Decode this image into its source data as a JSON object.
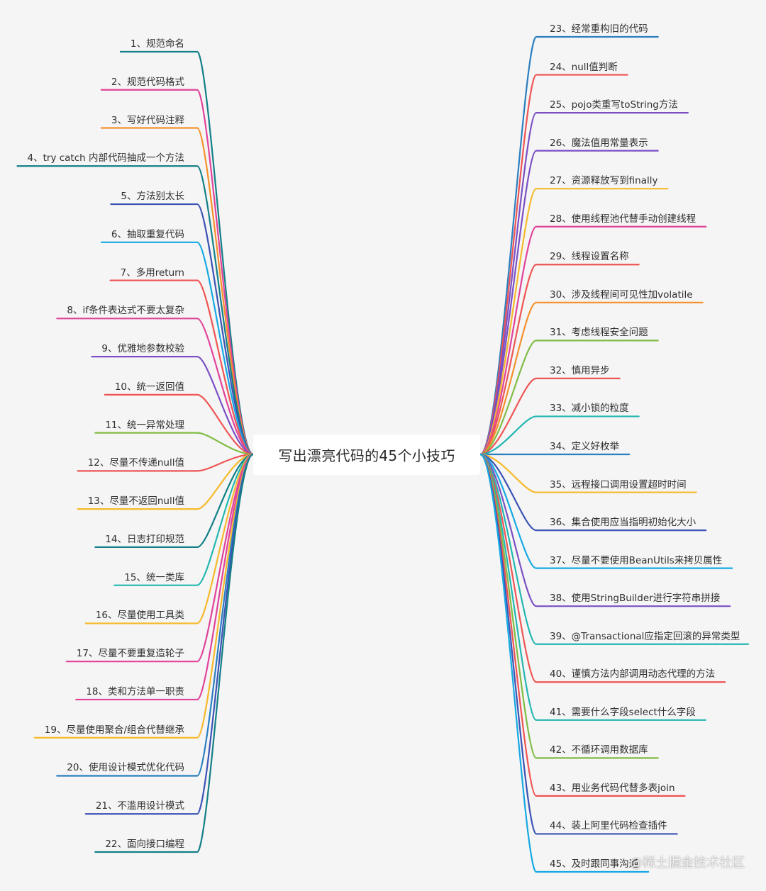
{
  "title": "写出漂亮代码的45个小技巧",
  "watermark": "@稀土掘金技术社区",
  "left_nodes": [
    {
      "label": "1、规范命名",
      "color": "#137f87"
    },
    {
      "label": "2、规范代码格式",
      "color": "#e0439a"
    },
    {
      "label": "3、写好代码注释",
      "color": "#f5902a"
    },
    {
      "label": "4、try catch 内部代码抽成一个方法",
      "color": "#137f87"
    },
    {
      "label": "5、方法别太长",
      "color": "#3b53b4"
    },
    {
      "label": "6、抽取重复代码",
      "color": "#16a9e3"
    },
    {
      "label": "7、多用return",
      "color": "#ef5454"
    },
    {
      "label": "8、if条件表达式不要太复杂",
      "color": "#e0439a"
    },
    {
      "label": "9、优雅地参数校验",
      "color": "#7b4fc4"
    },
    {
      "label": "10、统一返回值",
      "color": "#ef5454"
    },
    {
      "label": "11、统一异常处理",
      "color": "#80bc44"
    },
    {
      "label": "12、尽量不传递null值",
      "color": "#ef5454"
    },
    {
      "label": "13、尽量不返回null值",
      "color": "#f6b92b"
    },
    {
      "label": "14、日志打印规范",
      "color": "#137f87"
    },
    {
      "label": "15、统一类库",
      "color": "#22b7b0"
    },
    {
      "label": "16、尽量使用工具类",
      "color": "#f6b92b"
    },
    {
      "label": "17、尽量不要重复造轮子",
      "color": "#e0439a"
    },
    {
      "label": "18、类和方法单一职责",
      "color": "#e0439a"
    },
    {
      "label": "19、尽量使用聚合/组合代替继承",
      "color": "#f6b92b"
    },
    {
      "label": "20、使用设计模式优化代码",
      "color": "#2a7fc0"
    },
    {
      "label": "21、不滥用设计模式",
      "color": "#3b53b4"
    },
    {
      "label": "22、面向接口编程",
      "color": "#137f87"
    }
  ],
  "right_nodes": [
    {
      "label": "23、经常重构旧的代码",
      "color": "#2a7fc0"
    },
    {
      "label": "24、null值判断",
      "color": "#ef5454"
    },
    {
      "label": "25、pojo类重写toString方法",
      "color": "#7b4fc4"
    },
    {
      "label": "26、魔法值用常量表示",
      "color": "#7b4fc4"
    },
    {
      "label": "27、资源释放写到finally",
      "color": "#f6b92b"
    },
    {
      "label": "28、使用线程池代替手动创建线程",
      "color": "#e0439a"
    },
    {
      "label": "29、线程设置名称",
      "color": "#ef5454"
    },
    {
      "label": "30、涉及线程间可见性加volatile",
      "color": "#f5902a"
    },
    {
      "label": "31、考虑线程安全问题",
      "color": "#80bc44"
    },
    {
      "label": "32、慎用异步",
      "color": "#ef5454"
    },
    {
      "label": "33、减小锁的粒度",
      "color": "#22b7b0"
    },
    {
      "label": "34、定义好枚举",
      "color": "#2a7fc0"
    },
    {
      "label": "35、远程接口调用设置超时时间",
      "color": "#f6b92b"
    },
    {
      "label": "36、集合使用应当指明初始化大小",
      "color": "#3b53b4"
    },
    {
      "label": "37、尽量不要使用BeanUtils来拷贝属性",
      "color": "#16a9e3"
    },
    {
      "label": "38、使用StringBuilder进行字符串拼接",
      "color": "#7b4fc4"
    },
    {
      "label": "39、@Transactional应指定回滚的异常类型",
      "color": "#22b7b0"
    },
    {
      "label": "40、谨慎方法内部调用动态代理的方法",
      "color": "#ef5454"
    },
    {
      "label": "41、需要什么字段select什么字段",
      "color": "#22b7b0"
    },
    {
      "label": "42、不循环调用数据库",
      "color": "#80bc44"
    },
    {
      "label": "43、用业务代码代替多表join",
      "color": "#ef5454"
    },
    {
      "label": "44、装上阿里代码检查插件",
      "color": "#3b53b4"
    },
    {
      "label": "45、及时跟同事沟通",
      "color": "#16a9e3"
    }
  ]
}
